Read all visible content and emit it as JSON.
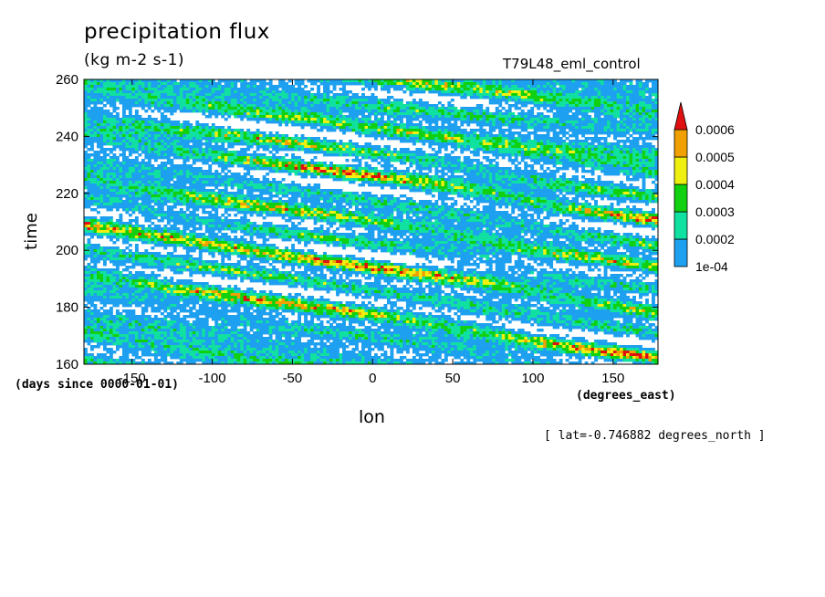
{
  "chart_data": {
    "type": "heatmap",
    "title": "precipitation flux",
    "units": "(kg m-2 s-1)",
    "experiment": "T79L48_eml_control",
    "xlabel": "lon",
    "ylabel": "time",
    "x_units": "(degrees_east)",
    "y_units": "(days since 0000-01-01)",
    "section_note": "[ lat=-0.746882 degrees_north ]",
    "xlim": [
      -180,
      178
    ],
    "ylim": [
      160,
      260
    ],
    "x_ticks": [
      -150,
      -100,
      -50,
      0,
      50,
      100,
      150
    ],
    "x_tick_labels": [
      "-150",
      "-100",
      "-50",
      "0",
      "50",
      "100",
      "150"
    ],
    "y_ticks": [
      160,
      180,
      200,
      220,
      240,
      260
    ],
    "y_tick_labels": [
      "160",
      "180",
      "200",
      "220",
      "240",
      "260"
    ],
    "colorbar": {
      "levels": [
        0.0001,
        0.0002,
        0.0003,
        0.0004,
        0.0005,
        0.0006
      ],
      "level_labels": [
        "1e-04",
        "0.0002",
        "0.0003",
        "0.0004",
        "0.0005",
        "0.0006"
      ],
      "colors": [
        "#1ea0f0",
        "#10e0a0",
        "#10d010",
        "#f0f010",
        "#f0a000",
        "#e01010"
      ],
      "extend": "max"
    },
    "below_min_color": "#ffffff"
  }
}
